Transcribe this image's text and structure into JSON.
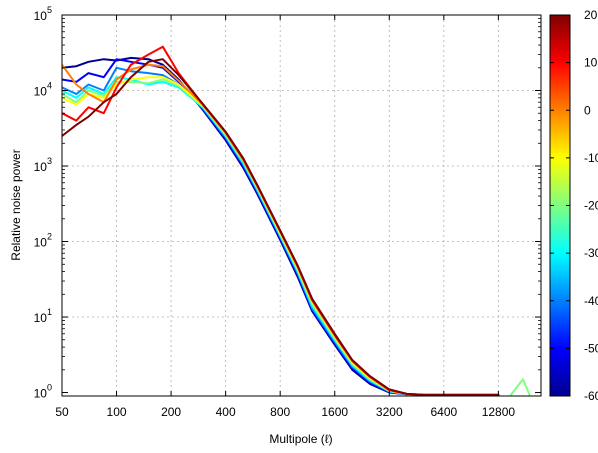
{
  "chart_data": {
    "type": "line",
    "xlabel": "Multipole (ℓ)",
    "ylabel": "Relative noise power",
    "x_scale": "log",
    "y_scale": "log",
    "xlim": [
      50,
      22000
    ],
    "ylim": [
      0.9,
      100000
    ],
    "x_ticks": [
      50,
      100,
      200,
      400,
      800,
      1600,
      3200,
      6400,
      12800
    ],
    "x_tick_labels": [
      "50",
      "100",
      "200",
      "400",
      "800",
      "1600",
      "3200",
      "6400",
      "12800"
    ],
    "y_ticks": [
      1,
      10,
      100,
      1000,
      10000,
      100000
    ],
    "y_tick_labels": [
      {
        "base": "10",
        "exp": "0"
      },
      {
        "base": "10",
        "exp": "1"
      },
      {
        "base": "10",
        "exp": "2"
      },
      {
        "base": "10",
        "exp": "3"
      },
      {
        "base": "10",
        "exp": "4"
      },
      {
        "base": "10",
        "exp": "5"
      }
    ],
    "grid": true,
    "colorbar": {
      "range": [
        -60,
        20
      ],
      "ticks": [
        20,
        10,
        0,
        -10,
        -20,
        -30,
        -40,
        -50,
        -60
      ],
      "tick_labels": [
        "20",
        "10",
        "0",
        "-10",
        "-20",
        "-30",
        "-40",
        "-50",
        "-60"
      ],
      "colormap": [
        "#00008f",
        "#0000ff",
        "#0080ff",
        "#00ffff",
        "#80ff80",
        "#ffff00",
        "#ff8000",
        "#ff0000",
        "#800000"
      ]
    },
    "series": [
      {
        "value": -60,
        "x": [
          50,
          60,
          70,
          85,
          100,
          120,
          150,
          180,
          220,
          300,
          400,
          500,
          600,
          800,
          1000,
          1200,
          1600,
          2000,
          2500,
          3200,
          4000,
          5000,
          6400,
          8000,
          10000,
          12800
        ],
        "y": [
          20000,
          21000,
          24000,
          26000,
          25000,
          27000,
          26000,
          22000,
          14000,
          5500,
          2200,
          950,
          420,
          105,
          34,
          12,
          4.3,
          2.0,
          1.3,
          1.0,
          0.95,
          0.93,
          0.93,
          0.93,
          0.93,
          0.93
        ]
      },
      {
        "value": -50,
        "x": [
          50,
          60,
          70,
          85,
          100,
          120,
          150,
          180,
          220,
          300,
          400,
          500,
          600,
          800,
          1000,
          1200,
          1600,
          2000,
          2500,
          3200,
          4000,
          5000,
          6400,
          8000,
          10000,
          12800
        ],
        "y": [
          14000,
          13000,
          17000,
          15000,
          26000,
          24000,
          22000,
          20000,
          13000,
          5600,
          2300,
          1000,
          440,
          110,
          36,
          12.5,
          4.5,
          2.1,
          1.35,
          1.02,
          0.95,
          0.93,
          0.93,
          0.93,
          0.93,
          0.93
        ]
      },
      {
        "value": -40,
        "x": [
          50,
          60,
          70,
          85,
          100,
          120,
          150,
          180,
          220,
          300,
          400,
          500,
          600,
          800,
          1000,
          1200,
          1600,
          2000,
          2500,
          3200,
          4000,
          5000,
          6400,
          8000,
          10000,
          12800
        ],
        "y": [
          11000,
          9000,
          12000,
          10000,
          20000,
          18000,
          17000,
          16000,
          12000,
          5800,
          2400,
          1050,
          460,
          115,
          38,
          13,
          4.7,
          2.2,
          1.4,
          1.03,
          0.95,
          0.93,
          0.93,
          0.93,
          0.93,
          0.93
        ]
      },
      {
        "value": -30,
        "x": [
          50,
          60,
          70,
          85,
          100,
          120,
          150,
          180,
          220,
          300,
          400,
          500,
          600,
          800,
          1000,
          1200,
          1600,
          2000,
          2500,
          3200,
          4000,
          5000,
          6400,
          8000,
          10000,
          12800
        ],
        "y": [
          10000,
          8000,
          11000,
          9000,
          15000,
          14000,
          12000,
          13000,
          11000,
          6000,
          2500,
          1100,
          480,
          120,
          40,
          14,
          5.0,
          2.3,
          1.45,
          1.04,
          0.95,
          0.93,
          0.93,
          0.93,
          0.93,
          0.93
        ]
      },
      {
        "value": -20,
        "x": [
          50,
          60,
          70,
          85,
          100,
          120,
          150,
          180,
          220,
          300,
          400,
          500,
          600,
          800,
          1000,
          1200,
          1600,
          2000,
          2500,
          3200,
          4000,
          5000,
          6400,
          8000,
          10000,
          12800
        ],
        "y": [
          9000,
          7000,
          10000,
          8500,
          13000,
          13000,
          12500,
          14000,
          11500,
          6200,
          2600,
          1150,
          500,
          125,
          42,
          15,
          5.2,
          2.4,
          1.5,
          1.05,
          0.95,
          0.93,
          0.93,
          0.93,
          0.93,
          0.93
        ]
      },
      {
        "value": -10,
        "x": [
          50,
          60,
          70,
          85,
          100,
          120,
          150,
          180,
          220,
          300,
          400,
          500,
          600,
          800,
          1000,
          1200,
          1600,
          2000,
          2500,
          3200,
          4000,
          5000,
          6400,
          8000,
          10000,
          12800
        ],
        "y": [
          8000,
          6500,
          9000,
          8000,
          12000,
          14000,
          15000,
          15000,
          12000,
          6300,
          2700,
          1200,
          520,
          130,
          44,
          16,
          5.5,
          2.5,
          1.55,
          1.06,
          0.96,
          0.93,
          0.93,
          0.93,
          0.93,
          0.93
        ]
      },
      {
        "value": 0,
        "x": [
          50,
          60,
          70,
          85,
          100,
          120,
          150,
          180,
          220,
          300,
          400,
          500,
          600,
          800,
          1000,
          1200,
          1600,
          2000,
          2500,
          3200,
          4000,
          5000,
          6400,
          8000,
          10000,
          12800
        ],
        "y": [
          22000,
          12000,
          9000,
          7000,
          14000,
          19000,
          22000,
          21000,
          13500,
          6400,
          2750,
          1200,
          530,
          135,
          46,
          16.5,
          5.7,
          2.6,
          1.6,
          1.07,
          0.96,
          0.93,
          0.93,
          0.93,
          0.93,
          0.93
        ]
      },
      {
        "value": 10,
        "x": [
          50,
          60,
          70,
          85,
          100,
          120,
          150,
          180,
          220,
          300,
          400,
          500,
          600,
          800,
          1000,
          1200,
          1600,
          2000,
          2500,
          3200,
          4000,
          5000,
          6400,
          8000,
          10000,
          12800
        ],
        "y": [
          5000,
          4000,
          6000,
          5000,
          11000,
          22000,
          30000,
          38000,
          17000,
          6500,
          2800,
          1250,
          540,
          138,
          47,
          17,
          5.8,
          2.65,
          1.62,
          1.08,
          0.96,
          0.93,
          0.93,
          0.93,
          0.93,
          0.93
        ]
      },
      {
        "value": 20,
        "x": [
          50,
          60,
          70,
          85,
          100,
          120,
          150,
          180,
          220,
          300,
          400,
          500,
          600,
          800,
          1000,
          1200,
          1600,
          2000,
          2500,
          3200,
          4000,
          5000,
          6400,
          8000,
          10000,
          12800
        ],
        "y": [
          2500,
          3500,
          4500,
          7000,
          9000,
          15000,
          24000,
          26000,
          16000,
          6600,
          2850,
          1270,
          550,
          140,
          48,
          17.5,
          6.0,
          2.7,
          1.65,
          1.1,
          0.96,
          0.93,
          0.93,
          0.93,
          0.93,
          0.93
        ]
      }
    ],
    "outlier_bump": {
      "x": [
        15000,
        17500,
        19000
      ],
      "y": [
        0.93,
        1.5,
        0.93
      ]
    }
  }
}
